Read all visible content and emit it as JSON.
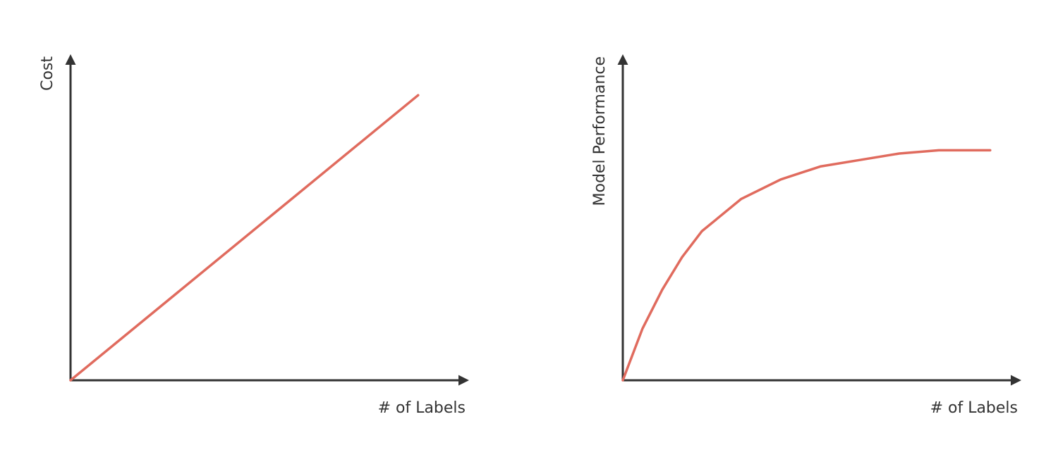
{
  "chart_data": [
    {
      "type": "line",
      "x_label": "# of Labels",
      "y_label": "Cost",
      "xlim": [
        0,
        100
      ],
      "ylim": [
        0,
        100
      ],
      "series": [
        {
          "color": "#e06b5e",
          "x": [
            0,
            88
          ],
          "values": [
            0,
            88
          ]
        }
      ]
    },
    {
      "type": "line",
      "x_label": "# of Labels",
      "y_label": "Model Performance",
      "xlim": [
        0,
        100
      ],
      "ylim": [
        0,
        100
      ],
      "series": [
        {
          "color": "#e06b5e",
          "x": [
            0,
            5,
            10,
            15,
            20,
            30,
            40,
            50,
            60,
            70,
            80,
            93
          ],
          "values": [
            0,
            16,
            28,
            38,
            46,
            56,
            62,
            66,
            68,
            70,
            71,
            71
          ]
        }
      ]
    }
  ]
}
